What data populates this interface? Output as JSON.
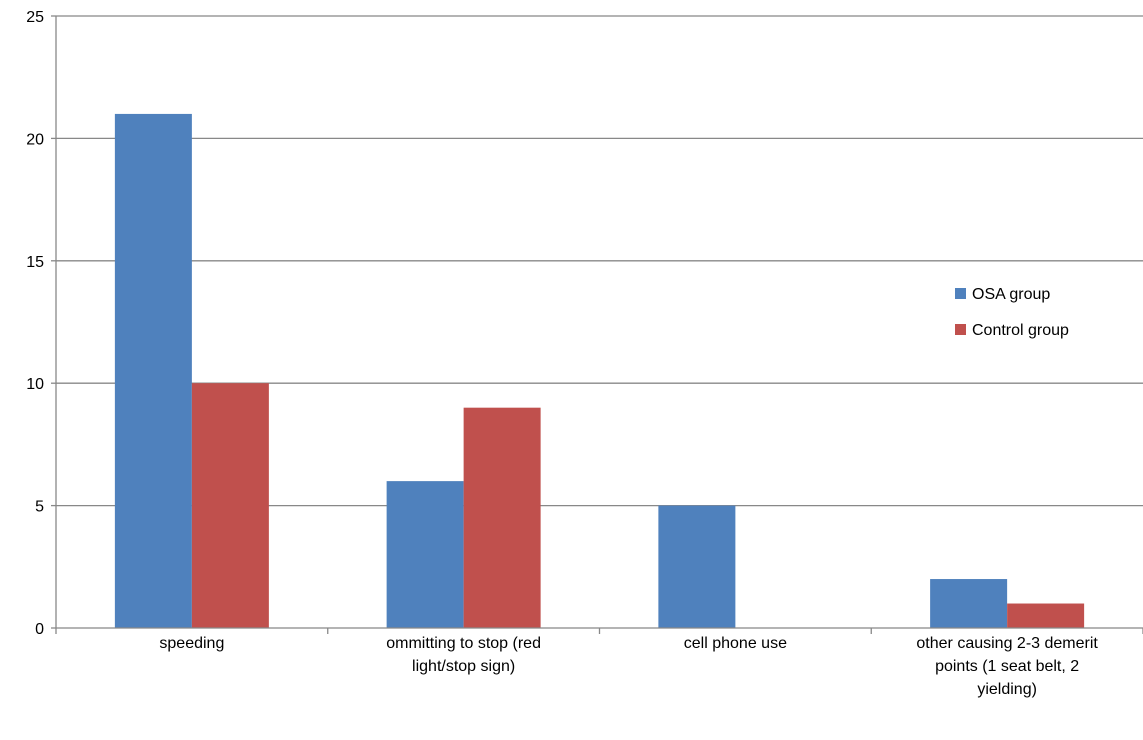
{
  "chart_data": {
    "type": "bar",
    "title": "",
    "xlabel": "",
    "ylabel": "",
    "ylim": [
      0,
      25
    ],
    "yticks": [
      0,
      5,
      10,
      15,
      20,
      25
    ],
    "grid": true,
    "legend_position": "right",
    "categories": [
      [
        "speeding"
      ],
      [
        "ommitting to stop (red",
        "light/stop sign)"
      ],
      [
        "cell phone use"
      ],
      [
        "other causing 2-3 demerit",
        "points (1 seat belt, 2",
        "yielding)"
      ]
    ],
    "series": [
      {
        "name": "OSA group",
        "color": "#4F81BD",
        "values": [
          21,
          6,
          5,
          2
        ]
      },
      {
        "name": "Control group",
        "color": "#C0504D",
        "values": [
          10,
          9,
          0,
          1
        ]
      }
    ]
  }
}
